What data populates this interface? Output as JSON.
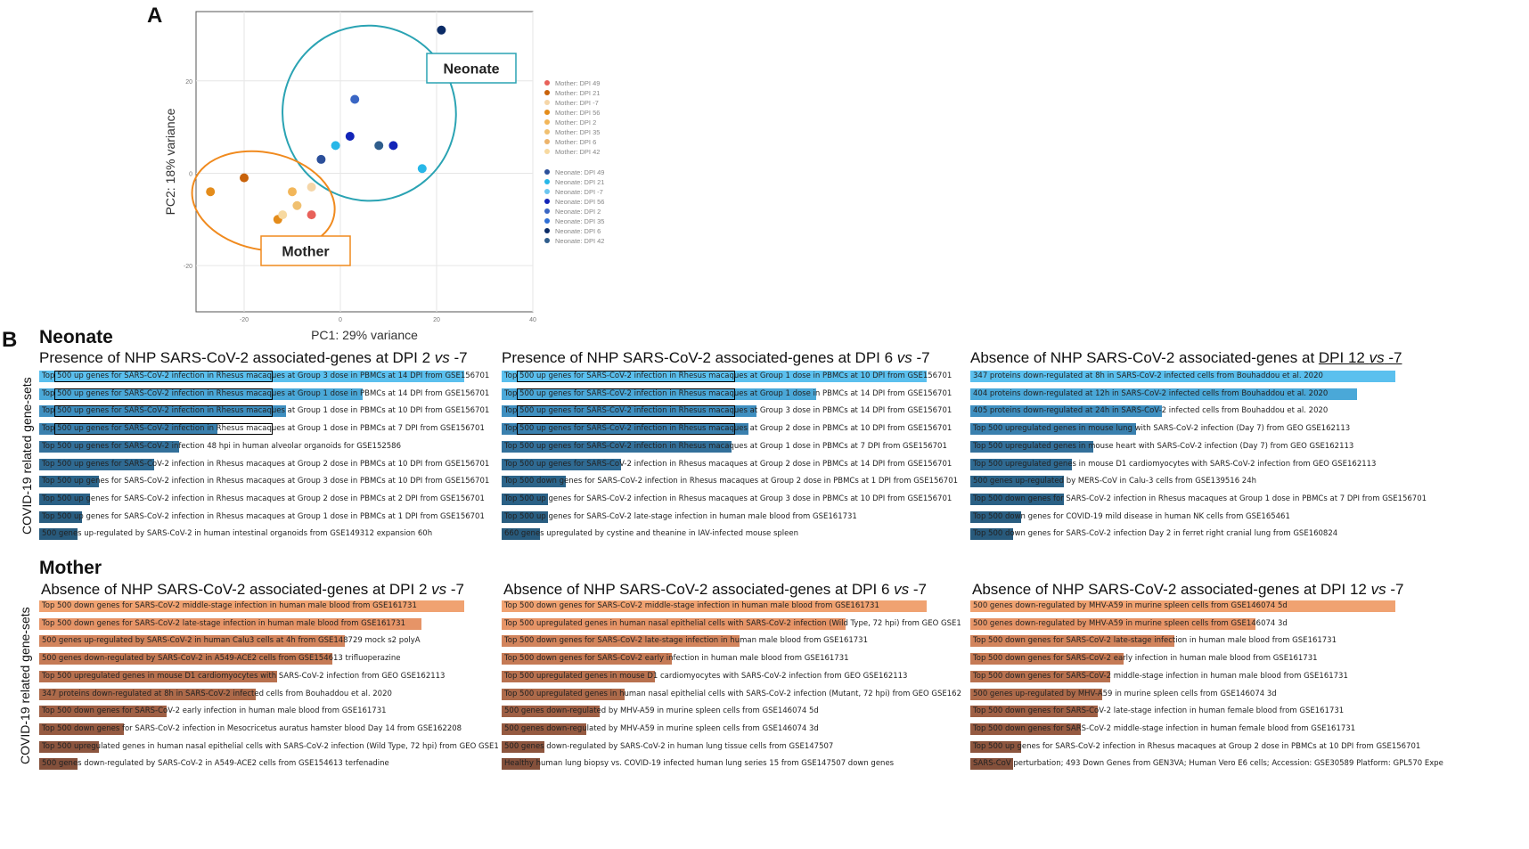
{
  "panel_a": {
    "letter": "A",
    "chart_data": {
      "type": "scatter",
      "xlabel": "PC1: 29% variance",
      "ylabel": "PC2: 18% variance",
      "xlim": [
        -30,
        40
      ],
      "ylim": [
        -30,
        35
      ],
      "xticks": [
        {
          "v": -20,
          "label": "-20"
        },
        {
          "v": 0,
          "label": "0"
        },
        {
          "v": 20,
          "label": "20"
        },
        {
          "v": 40,
          "label": "40"
        }
      ],
      "yticks": [
        {
          "v": 20,
          "label": "20"
        },
        {
          "v": 0,
          "label": "0"
        },
        {
          "v": -20,
          "label": "-20"
        }
      ],
      "groups": [
        {
          "name": "Neonate",
          "label": "Neonate",
          "ellipse": {
            "cx": 6,
            "cy": 13,
            "rx": 18,
            "ry": 19,
            "rot": -20
          },
          "color": "#2aa3b3"
        },
        {
          "name": "Mother",
          "label": "Mother",
          "ellipse": {
            "cx": -16,
            "cy": -6,
            "rx": 15,
            "ry": 10.5,
            "rot": 12
          },
          "color": "#f08a1e"
        }
      ],
      "legend": [
        {
          "name": "Mother: DPI 49",
          "color": "#e8615a"
        },
        {
          "name": "Mother: DPI 21",
          "color": "#c8620a"
        },
        {
          "name": "Mother: DPI -7",
          "color": "#f5d6a8"
        },
        {
          "name": "Mother: DPI 56",
          "color": "#e48c1b"
        },
        {
          "name": "Mother: DPI 2",
          "color": "#f2b659"
        },
        {
          "name": "Mother: DPI 35",
          "color": "#f0c070"
        },
        {
          "name": "Mother: DPI 6",
          "color": "#ecb36a"
        },
        {
          "name": "Mother: DPI 42",
          "color": "#f7d9a0"
        },
        {
          "name": "Neonate: DPI 49",
          "color": "#2b4f9a"
        },
        {
          "name": "Neonate: DPI 21",
          "color": "#27b7e8"
        },
        {
          "name": "Neonate: DPI -7",
          "color": "#6bc6f0"
        },
        {
          "name": "Neonate: DPI 56",
          "color": "#1224b8"
        },
        {
          "name": "Neonate: DPI 2",
          "color": "#3a66c4"
        },
        {
          "name": "Neonate: DPI 35",
          "color": "#2f6fd6"
        },
        {
          "name": "Neonate: DPI 6",
          "color": "#0b2b66"
        },
        {
          "name": "Neonate: DPI 42",
          "color": "#2f5d8c"
        }
      ],
      "points": [
        {
          "x": -27,
          "y": -4,
          "color": "#e48c1b"
        },
        {
          "x": -20,
          "y": -1,
          "color": "#c8620a"
        },
        {
          "x": -13,
          "y": -10,
          "color": "#e48c1b"
        },
        {
          "x": -12,
          "y": -9,
          "color": "#f7d9a0"
        },
        {
          "x": -10,
          "y": -4,
          "color": "#f2b659"
        },
        {
          "x": -9,
          "y": -7,
          "color": "#f0c070"
        },
        {
          "x": -6,
          "y": -9,
          "color": "#e8615a"
        },
        {
          "x": -6,
          "y": -3,
          "color": "#f5d6a8"
        },
        {
          "x": -4,
          "y": 3,
          "color": "#2b4f9a"
        },
        {
          "x": -1,
          "y": 6,
          "color": "#27b7e8"
        },
        {
          "x": 2,
          "y": 8,
          "color": "#1224b8"
        },
        {
          "x": 3,
          "y": 16,
          "color": "#3a66c4"
        },
        {
          "x": 8,
          "y": 6,
          "color": "#2f5d8c"
        },
        {
          "x": 11,
          "y": 6,
          "color": "#1224b8"
        },
        {
          "x": 17,
          "y": 1,
          "color": "#27b7e8"
        },
        {
          "x": 21,
          "y": 31,
          "color": "#0b2b66"
        }
      ]
    }
  },
  "panel_b": {
    "letter": "B",
    "neonate_title": "Neonate",
    "mother_title": "Mother",
    "ylabel": "COVID-19 related gene-sets",
    "neonate_charts": [
      {
        "title_pre": "Presence of NHP SARS-CoV-2 associated-genes at DPI 2 ",
        "title_vs": "vs",
        "title_post": " -7",
        "rows": [
          {
            "text": "Top 500 up genes for SARS-CoV-2 infection in Rhesus macaques at Group 3 dose in PBMCs at 14 DPI from GSE156701",
            "value": 1.0,
            "color": "#5bc0ee",
            "boxed": true
          },
          {
            "text": "Top 500 up genes for SARS-CoV-2 infection in Rhesus macaques at Group 1 dose in PBMCs at 14 DPI from GSE156701",
            "value": 0.76,
            "color": "#4aa8d8",
            "boxed": true
          },
          {
            "text": "Top 500 up genes for SARS-CoV-2 infection in Rhesus macaques at Group 1 dose in PBMCs at 10 DPI from GSE156701",
            "value": 0.58,
            "color": "#3f8fc0",
            "boxed": true
          },
          {
            "text": "Top 500 up genes for SARS-CoV-2 infection in Rhesus macaques at Group 1 dose in PBMCs at 7 DPI from GSE156701",
            "value": 0.42,
            "color": "#3a80ae",
            "boxed": true
          },
          {
            "text": "Top 500 up genes for SARS-CoV-2 infection 48 hpi in human alveolar organoids for GSE152586",
            "value": 0.33,
            "color": "#33709a",
            "boxed": false
          },
          {
            "text": "Top 500 up genes for SARS-CoV-2 infection in Rhesus macaques at Group 2 dose in PBMCs at 10 DPI from GSE156701",
            "value": 0.27,
            "color": "#2f6a92",
            "boxed": false
          },
          {
            "text": "Top 500 up genes for SARS-CoV-2 infection in Rhesus macaques at Group 3 dose in PBMCs at 10 DPI from GSE156701",
            "value": 0.14,
            "color": "#2c6489",
            "boxed": false
          },
          {
            "text": "Top 500 up genes for SARS-CoV-2 infection in Rhesus macaques at Group 2 dose in PBMCs at 2 DPI from GSE156701",
            "value": 0.12,
            "color": "#2a6085",
            "boxed": false
          },
          {
            "text": "Top 500 up genes for SARS-CoV-2 infection in Rhesus macaques at Group 1 dose in PBMCs at 1 DPI from GSE156701",
            "value": 0.1,
            "color": "#295d80",
            "boxed": false
          },
          {
            "text": "500 genes up-regulated by SARS-CoV-2 in human intestinal organoids from GSE149312 expansion 60h",
            "value": 0.09,
            "color": "#285a7c",
            "boxed": false
          }
        ]
      },
      {
        "title_pre": "Presence of NHP SARS-CoV-2 associated-genes at DPI 6 ",
        "title_vs": "vs",
        "title_post": " -7",
        "rows": [
          {
            "text": "Top 500 up genes for SARS-CoV-2 infection in Rhesus macaques at Group 1 dose in PBMCs at 10 DPI from GSE156701",
            "value": 1.0,
            "color": "#5bc0ee",
            "boxed": true
          },
          {
            "text": "Top 500 up genes for SARS-CoV-2 infection in Rhesus macaques at Group 1 dose in PBMCs at 14 DPI from GSE156701",
            "value": 0.74,
            "color": "#4aa8d8",
            "boxed": true
          },
          {
            "text": "Top 500 up genes for SARS-CoV-2 infection in Rhesus macaques at Group 3 dose in PBMCs at 14 DPI from GSE156701",
            "value": 0.6,
            "color": "#3f8fc0",
            "boxed": true
          },
          {
            "text": "Top 500 up genes for SARS-CoV-2 infection in Rhesus macaques at Group 2 dose in PBMCs at 10 DPI from GSE156701",
            "value": 0.58,
            "color": "#3a80ae",
            "boxed": true
          },
          {
            "text": "Top 500 up genes for SARS-CoV-2 infection in Rhesus macaques at Group 1 dose in PBMCs at 7 DPI from GSE156701",
            "value": 0.54,
            "color": "#33709a",
            "boxed": false
          },
          {
            "text": "Top 500 up genes for SARS-CoV-2 infection in Rhesus macaques at Group 2 dose in PBMCs at 14 DPI from GSE156701",
            "value": 0.28,
            "color": "#2f6a92",
            "boxed": false
          },
          {
            "text": "Top 500 down genes for SARS-CoV-2 infection in Rhesus macaques at Group 2 dose in PBMCs at 1 DPI from GSE156701",
            "value": 0.15,
            "color": "#2c6489",
            "boxed": false
          },
          {
            "text": "Top 500 up genes for SARS-CoV-2 infection in Rhesus macaques at Group 3 dose in PBMCs at 10 DPI from GSE156701",
            "value": 0.11,
            "color": "#2a6085",
            "boxed": false
          },
          {
            "text": "Top 500 up genes for SARS-CoV-2 late-stage infection in human male blood from GSE161731",
            "value": 0.11,
            "color": "#295d80",
            "boxed": false
          },
          {
            "text": "660 genes upregulated by cystine and theanine in IAV-infected mouse spleen",
            "value": 0.09,
            "color": "#285a7c",
            "boxed": false
          }
        ]
      },
      {
        "title_pre": "Absence of NHP SARS-CoV-2 associated-genes at ",
        "title_vs": "vs",
        "title_underlined": "DPI 12 vs -7",
        "rows": [
          {
            "text": "347 proteins down-regulated at 8h in SARS-CoV-2 infected cells from Bouhaddou et al. 2020",
            "value": 1.0,
            "color": "#5bc0ee",
            "boxed": false
          },
          {
            "text": "404 proteins down-regulated at 12h in SARS-CoV-2 infected cells from Bouhaddou et al. 2020",
            "value": 0.91,
            "color": "#4aa8d8",
            "boxed": false
          },
          {
            "text": "405 proteins down-regulated at 24h in SARS-CoV-2 infected cells from Bouhaddou et al. 2020",
            "value": 0.45,
            "color": "#3f8fc0",
            "boxed": false
          },
          {
            "text": "Top 500 upregulated genes in mouse lung with SARS-CoV-2 infection (Day 7) from GEO GSE162113",
            "value": 0.39,
            "color": "#3a80ae",
            "boxed": false
          },
          {
            "text": "Top 500 upregulated genes in mouse heart with SARS-CoV-2 infection (Day 7) from GEO GSE162113",
            "value": 0.29,
            "color": "#33709a",
            "boxed": false
          },
          {
            "text": "Top 500 upregulated genes in mouse D1 cardiomyocytes with SARS-CoV-2 infection from GEO GSE162113",
            "value": 0.24,
            "color": "#2f6a92",
            "boxed": false
          },
          {
            "text": "500 genes up-regulated by MERS-CoV in Calu-3 cells from GSE139516 24h",
            "value": 0.22,
            "color": "#2c6489",
            "boxed": false
          },
          {
            "text": "Top 500 down genes for SARS-CoV-2 infection in Rhesus macaques at Group 1 dose in PBMCs at 7 DPI from GSE156701",
            "value": 0.22,
            "color": "#2a6085",
            "boxed": false
          },
          {
            "text": "Top 500 down genes for COVID-19 mild disease in human NK cells from GSE165461",
            "value": 0.12,
            "color": "#295d80",
            "boxed": false
          },
          {
            "text": "Top 500 down genes for SARS-CoV-2 infection Day 2 in ferret right cranial lung from GSE160824",
            "value": 0.1,
            "color": "#285a7c",
            "boxed": false
          }
        ]
      }
    ],
    "mother_charts": [
      {
        "title_pre": "Absence of NHP SARS-CoV-2 associated-genes at DPI 2 ",
        "title_vs": "vs",
        "title_post": " -7",
        "rows": [
          {
            "text": "Top 500 down genes for SARS-CoV-2 middle-stage infection in human male blood from GSE161731",
            "value": 1.0,
            "color": "#f0a271"
          },
          {
            "text": "Top 500 down genes for SARS-CoV-2 late-stage infection in human male blood from GSE161731",
            "value": 0.9,
            "color": "#e69467"
          },
          {
            "text": "500 genes up-regulated by SARS-CoV-2 in human Calu3 cells at 4h from GSE148729 mock s2 polyA",
            "value": 0.72,
            "color": "#d2845c"
          },
          {
            "text": "500 genes down-regulated by SARS-CoV-2 in A549-ACE2 cells from GSE154613 trifluoperazine",
            "value": 0.69,
            "color": "#c57a55"
          },
          {
            "text": "Top 500 upregulated genes in mouse D1 cardiomyocytes with SARS-CoV-2 infection from GEO GSE162113",
            "value": 0.56,
            "color": "#b8714f"
          },
          {
            "text": "347 proteins down-regulated at 8h in SARS-CoV-2 infected cells from Bouhaddou et al. 2020",
            "value": 0.51,
            "color": "#ad6a4a"
          },
          {
            "text": "Top 500 down genes for SARS-CoV-2 early infection in human male blood from GSE161731",
            "value": 0.3,
            "color": "#9f6045"
          },
          {
            "text": "Top 500 down genes for SARS-CoV-2 infection in Mesocricetus auratus hamster blood Day 14 from GSE162208",
            "value": 0.2,
            "color": "#955a41"
          },
          {
            "text": "Top 500 upregulated genes in human nasal epithelial cells with SARS-CoV-2 infection (Wild Type, 72 hpi) from GEO GSE1",
            "value": 0.14,
            "color": "#8c553e"
          },
          {
            "text": "500 genes down-regulated by SARS-CoV-2 in A549-ACE2 cells from GSE154613 terfenadine",
            "value": 0.09,
            "color": "#84503b"
          }
        ]
      },
      {
        "title_pre": "Absence of NHP SARS-CoV-2 associated-genes at DPI 6 ",
        "title_vs": "vs",
        "title_post": " -7",
        "rows": [
          {
            "text": "Top 500 down genes for SARS-CoV-2 middle-stage infection in human male blood from GSE161731",
            "value": 1.0,
            "color": "#f0a271"
          },
          {
            "text": "Top 500 upregulated genes in human nasal epithelial cells with SARS-CoV-2 infection (Wild Type, 72 hpi) from GEO GSE1",
            "value": 0.81,
            "color": "#e69467"
          },
          {
            "text": "Top 500 down genes for SARS-CoV-2 late-stage infection in human male blood from GSE161731",
            "value": 0.56,
            "color": "#d2845c"
          },
          {
            "text": "Top 500 down genes for SARS-CoV-2 early infection in human male blood from GSE161731",
            "value": 0.4,
            "color": "#c57a55"
          },
          {
            "text": "Top 500 upregulated genes in mouse D1 cardiomyocytes with SARS-CoV-2 infection from GEO GSE162113",
            "value": 0.36,
            "color": "#b8714f"
          },
          {
            "text": "Top 500 upregulated genes in human nasal epithelial cells with SARS-CoV-2 infection (Mutant, 72 hpi) from GEO GSE162",
            "value": 0.29,
            "color": "#ad6a4a"
          },
          {
            "text": "500 genes down-regulated by MHV-A59 in murine spleen cells from GSE146074 5d",
            "value": 0.23,
            "color": "#9f6045"
          },
          {
            "text": "500 genes down-regulated by MHV-A59 in murine spleen cells from GSE146074 3d",
            "value": 0.2,
            "color": "#955a41"
          },
          {
            "text": "500 genes down-regulated by SARS-CoV-2 in human lung tissue cells from GSE147507",
            "value": 0.1,
            "color": "#8c553e"
          },
          {
            "text": "Healthy human lung biopsy vs. COVID-19 infected human lung series 15 from GSE147507 down genes",
            "value": 0.09,
            "color": "#84503b"
          }
        ]
      },
      {
        "title_pre": "Absence of NHP SARS-CoV-2 associated-genes at DPI 12 ",
        "title_vs": "vs",
        "title_post": " -7",
        "rows": [
          {
            "text": "500 genes down-regulated by MHV-A59 in murine spleen cells from GSE146074 5d",
            "value": 1.0,
            "color": "#f0a271"
          },
          {
            "text": "500 genes down-regulated by MHV-A59 in murine spleen cells from GSE146074 3d",
            "value": 0.67,
            "color": "#e69467"
          },
          {
            "text": "Top 500 down genes for SARS-CoV-2 late-stage infection in human male blood from GSE161731",
            "value": 0.48,
            "color": "#d2845c"
          },
          {
            "text": "Top 500 down genes for SARS-CoV-2 early infection in human male blood from GSE161731",
            "value": 0.36,
            "color": "#c57a55"
          },
          {
            "text": "Top 500 down genes for SARS-CoV-2 middle-stage infection in human male blood from GSE161731",
            "value": 0.33,
            "color": "#b8714f"
          },
          {
            "text": "500 genes up-regulated by MHV-A59 in murine spleen cells from GSE146074 3d",
            "value": 0.31,
            "color": "#ad6a4a"
          },
          {
            "text": "Top 500 down genes for SARS-CoV-2 late-stage infection in human female blood from GSE161731",
            "value": 0.3,
            "color": "#9f6045"
          },
          {
            "text": "Top 500 down genes for SARS-CoV-2 middle-stage infection in human female blood from GSE161731",
            "value": 0.26,
            "color": "#955a41"
          },
          {
            "text": "Top 500 up genes for SARS-CoV-2 infection in Rhesus macaques at Group 2 dose in PBMCs at 10 DPI from GSE156701",
            "value": 0.12,
            "color": "#8c553e"
          },
          {
            "text": "SARS-CoV perturbation; 493 Down Genes from GEN3VA; Human Vero E6 cells; Accession: GSE30589 Platform: GPL570 Expe",
            "value": 0.1,
            "color": "#84503b"
          }
        ]
      }
    ]
  }
}
